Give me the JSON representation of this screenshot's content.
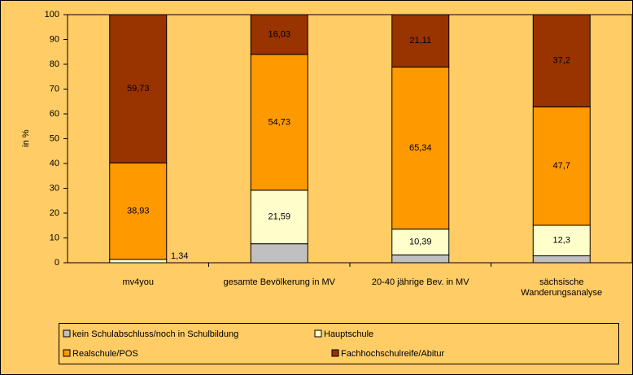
{
  "chart_data": {
    "type": "stacked_bar",
    "y_label": "in %",
    "categories": [
      "mv4you",
      "gesamte Bevölkerung in MV",
      "20-40 jährige Bev. in MV",
      "sächsische Wanderungsanalyse"
    ],
    "series": [
      {
        "name": "kein Schulabschluss/noch in Schulbildung",
        "color": "#C0C0C0",
        "values": [
          0,
          7.65,
          3.16,
          2.8
        ]
      },
      {
        "name": "Hauptschule",
        "color": "#FFFFCC",
        "values": [
          1.34,
          21.59,
          10.39,
          12.3
        ],
        "value_labels": [
          "1,34",
          "21,59",
          "10,39",
          "12,3"
        ]
      },
      {
        "name": "Realschule/POS",
        "color": "#FF9900",
        "values": [
          38.93,
          54.73,
          65.34,
          47.7
        ],
        "value_labels": [
          "38,93",
          "54,73",
          "65,34",
          "47,7"
        ]
      },
      {
        "name": "Fachhochschulreife/Abitur",
        "color": "#993300",
        "values": [
          59.73,
          16.03,
          21.11,
          37.2
        ],
        "value_labels": [
          "59,73",
          "16,03",
          "21,11",
          "37,2"
        ]
      }
    ],
    "ylim": [
      0,
      100
    ],
    "yticks": [
      0,
      10,
      20,
      30,
      40,
      50,
      60,
      70,
      80,
      90,
      100
    ],
    "grid": false,
    "legend": "bottom"
  }
}
